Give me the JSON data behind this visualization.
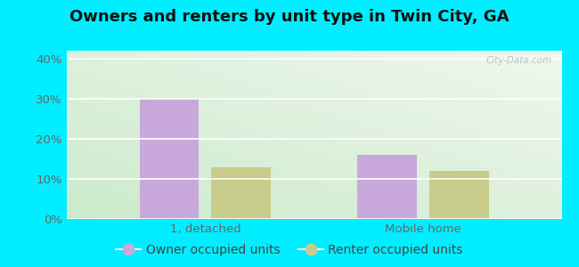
{
  "title": "Owners and renters by unit type in Twin City, GA",
  "categories": [
    "1, detached",
    "Mobile home"
  ],
  "owner_values": [
    0.3,
    0.16
  ],
  "renter_values": [
    0.13,
    0.12
  ],
  "owner_color": "#c9a8dc",
  "renter_color": "#c8cc8a",
  "owner_label": "Owner occupied units",
  "renter_label": "Renter occupied units",
  "ylim": [
    0,
    0.42
  ],
  "yticks": [
    0.0,
    0.1,
    0.2,
    0.3,
    0.4
  ],
  "ytick_labels": [
    "0%",
    "10%",
    "20%",
    "30%",
    "40%"
  ],
  "outer_background": "#00eeff",
  "bar_width": 0.12,
  "title_fontsize": 13,
  "legend_fontsize": 10,
  "tick_fontsize": 9.5,
  "watermark": "City-Data.com"
}
